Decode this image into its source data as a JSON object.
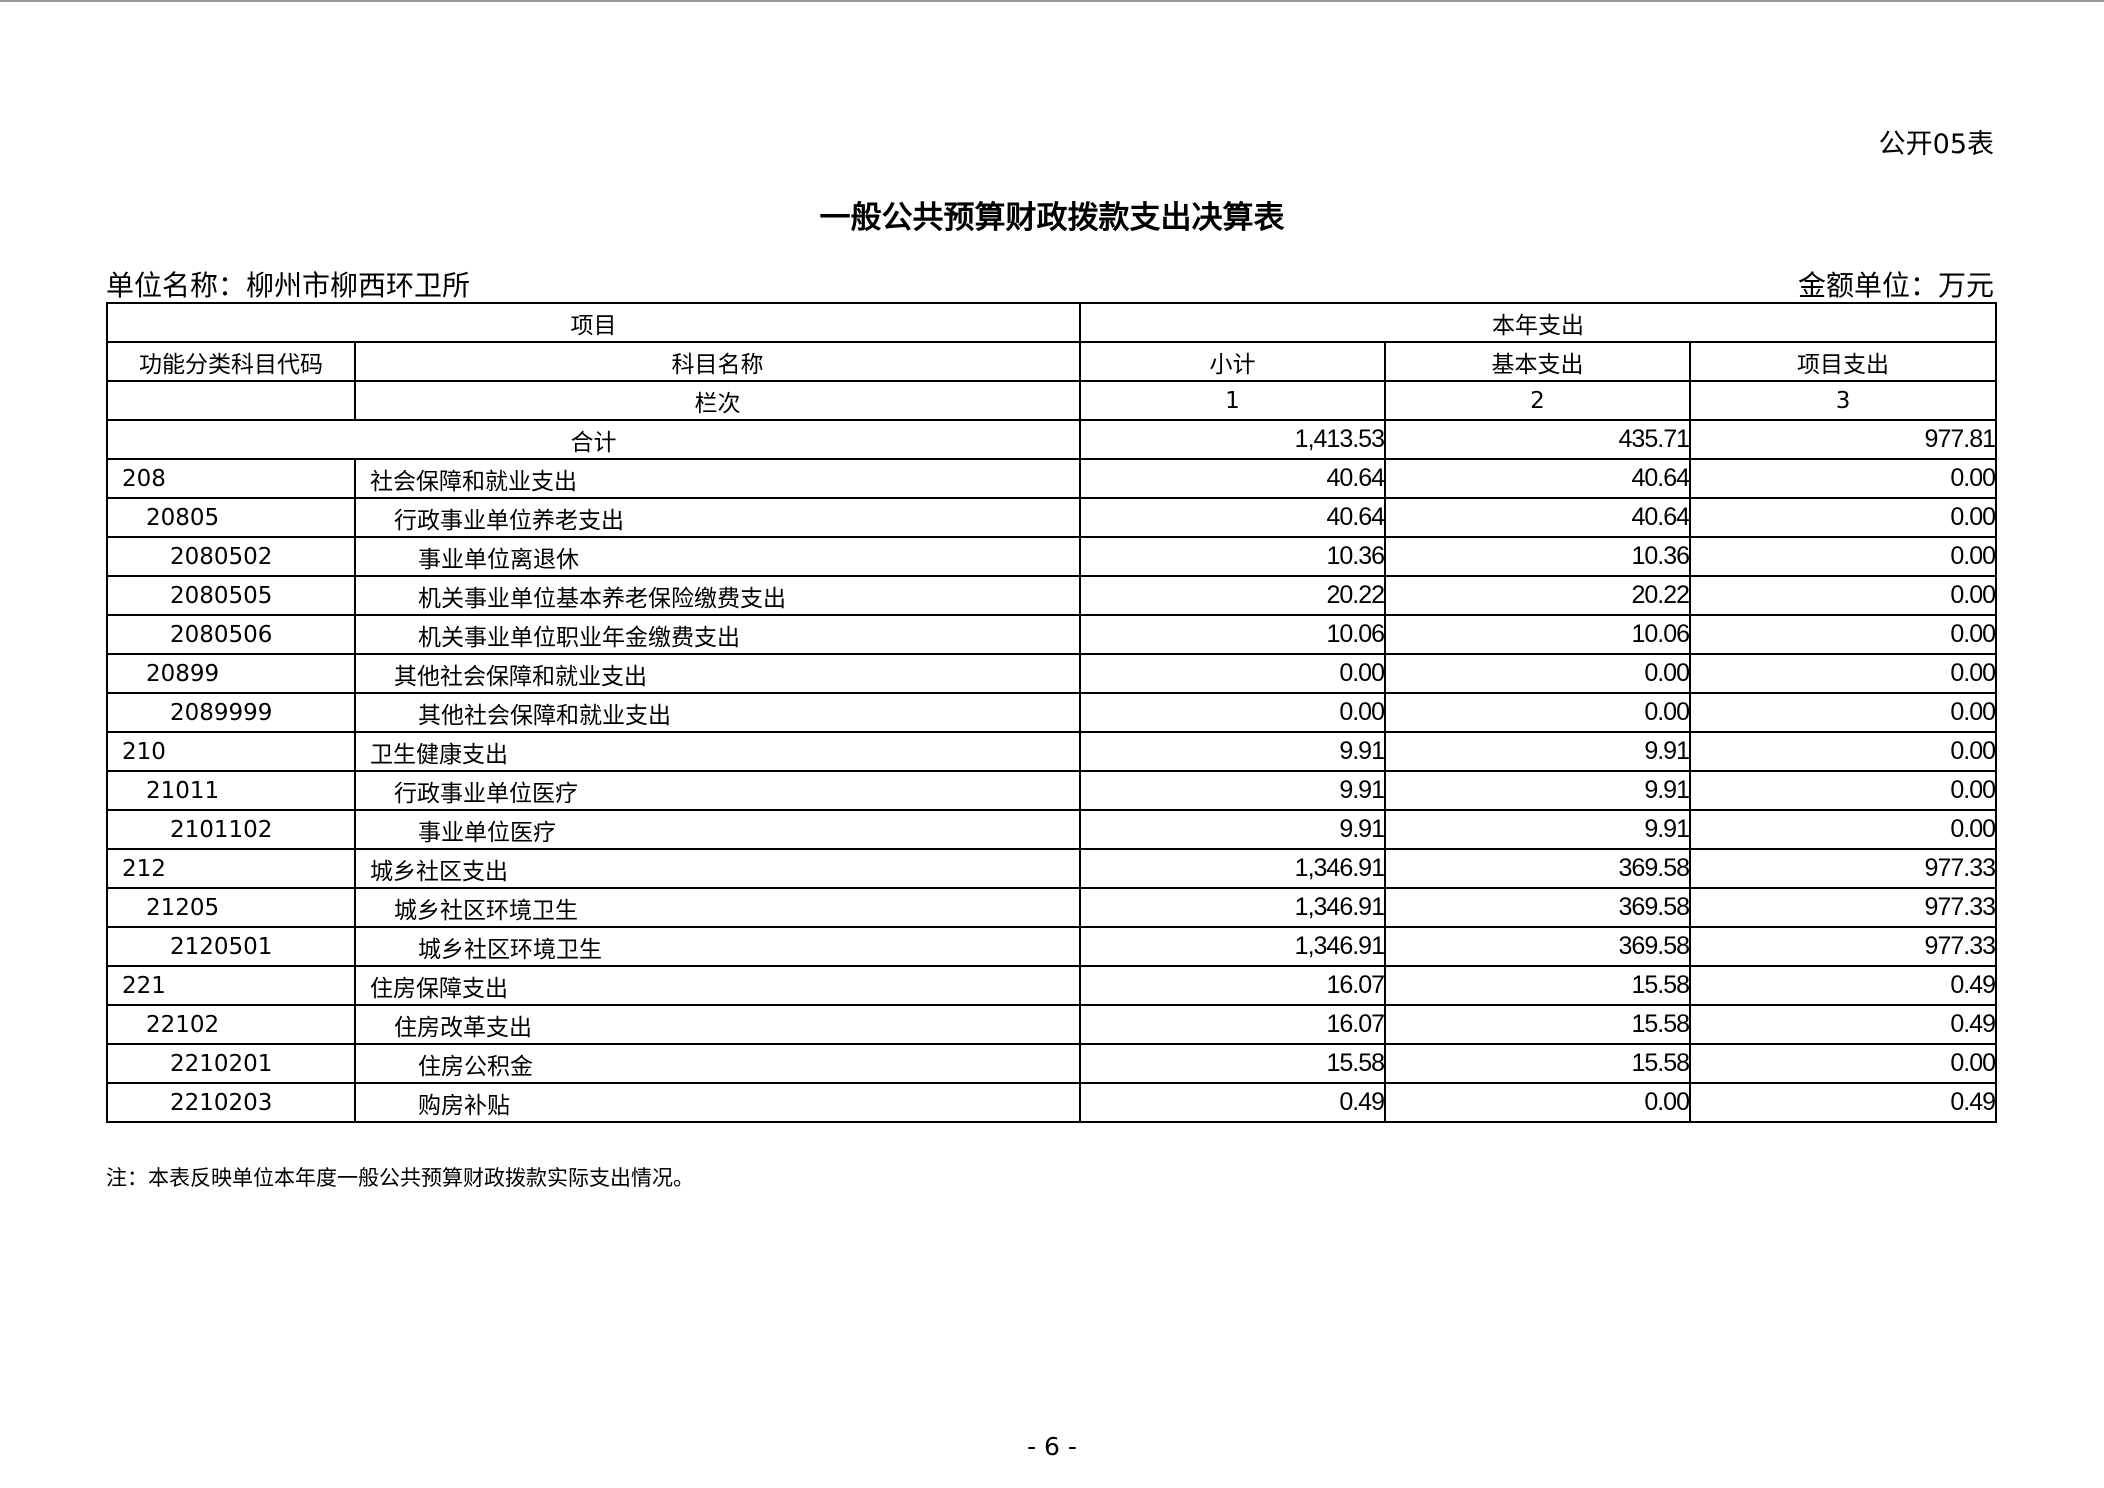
{
  "form_no": "公开05表",
  "title": "一般公共预算财政拨款支出决算表",
  "unit_name": "单位名称：柳州市柳西环卫所",
  "amount_unit": "金额单位：万元",
  "headers": {
    "project": "项目",
    "current_year": "本年支出",
    "code": "功能分类科目代码",
    "name": "科目名称",
    "subtotal": "小计",
    "basic": "基本支出",
    "project_exp": "项目支出",
    "column_no": "栏次",
    "c1": "1",
    "c2": "2",
    "c3": "3"
  },
  "total": {
    "label": "合计",
    "subtotal": "1,413.53",
    "basic": "435.71",
    "project": "977.81"
  },
  "rows": [
    {
      "code": "208",
      "name": "社会保障和就业支出",
      "subtotal": "40.64",
      "basic": "40.64",
      "project": "0.00",
      "level": 0
    },
    {
      "code": "20805",
      "name": "行政事业单位养老支出",
      "subtotal": "40.64",
      "basic": "40.64",
      "project": "0.00",
      "level": 1
    },
    {
      "code": "2080502",
      "name": "事业单位离退休",
      "subtotal": "10.36",
      "basic": "10.36",
      "project": "0.00",
      "level": 2
    },
    {
      "code": "2080505",
      "name": "机关事业单位基本养老保险缴费支出",
      "subtotal": "20.22",
      "basic": "20.22",
      "project": "0.00",
      "level": 2
    },
    {
      "code": "2080506",
      "name": "机关事业单位职业年金缴费支出",
      "subtotal": "10.06",
      "basic": "10.06",
      "project": "0.00",
      "level": 2
    },
    {
      "code": "20899",
      "name": "其他社会保障和就业支出",
      "subtotal": "0.00",
      "basic": "0.00",
      "project": "0.00",
      "level": 1
    },
    {
      "code": "2089999",
      "name": "其他社会保障和就业支出",
      "subtotal": "0.00",
      "basic": "0.00",
      "project": "0.00",
      "level": 2
    },
    {
      "code": "210",
      "name": "卫生健康支出",
      "subtotal": "9.91",
      "basic": "9.91",
      "project": "0.00",
      "level": 0
    },
    {
      "code": "21011",
      "name": "行政事业单位医疗",
      "subtotal": "9.91",
      "basic": "9.91",
      "project": "0.00",
      "level": 1
    },
    {
      "code": "2101102",
      "name": "事业单位医疗",
      "subtotal": "9.91",
      "basic": "9.91",
      "project": "0.00",
      "level": 2
    },
    {
      "code": "212",
      "name": "城乡社区支出",
      "subtotal": "1,346.91",
      "basic": "369.58",
      "project": "977.33",
      "level": 0
    },
    {
      "code": "21205",
      "name": "城乡社区环境卫生",
      "subtotal": "1,346.91",
      "basic": "369.58",
      "project": "977.33",
      "level": 1
    },
    {
      "code": "2120501",
      "name": "城乡社区环境卫生",
      "subtotal": "1,346.91",
      "basic": "369.58",
      "project": "977.33",
      "level": 2
    },
    {
      "code": "221",
      "name": "住房保障支出",
      "subtotal": "16.07",
      "basic": "15.58",
      "project": "0.49",
      "level": 0
    },
    {
      "code": "22102",
      "name": "住房改革支出",
      "subtotal": "16.07",
      "basic": "15.58",
      "project": "0.49",
      "level": 1
    },
    {
      "code": "2210201",
      "name": "住房公积金",
      "subtotal": "15.58",
      "basic": "15.58",
      "project": "0.00",
      "level": 2
    },
    {
      "code": "2210203",
      "name": "购房补贴",
      "subtotal": "0.49",
      "basic": "0.00",
      "project": "0.49",
      "level": 2
    }
  ],
  "note": "注：本表反映单位本年度一般公共预算财政拨款实际支出情况。",
  "page_number": "- 6 -"
}
